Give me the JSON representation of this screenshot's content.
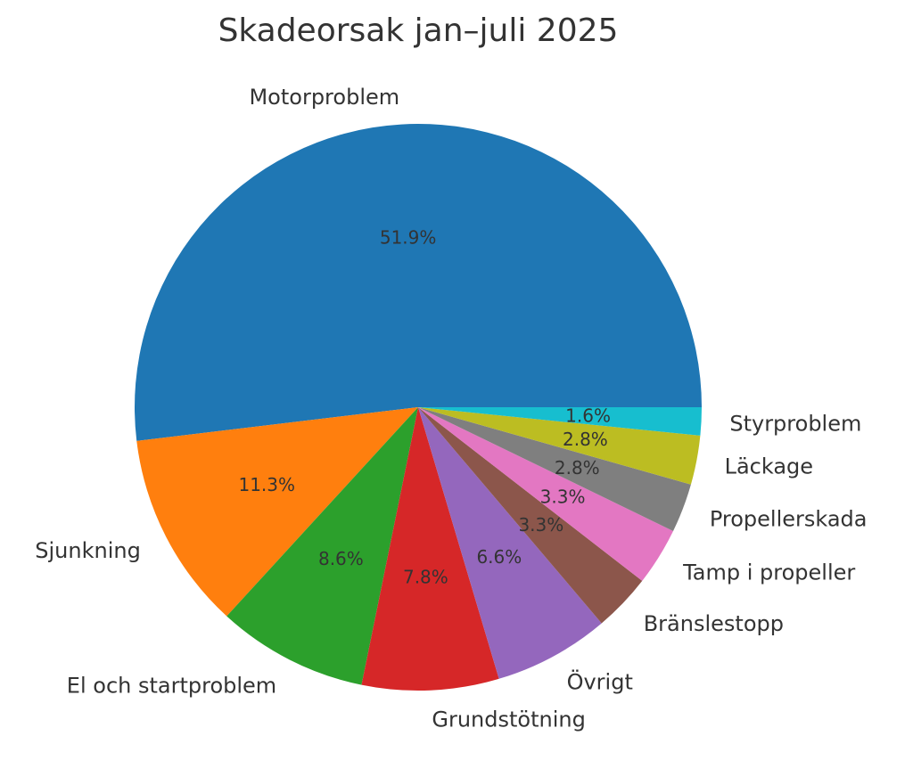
{
  "chart_data": {
    "type": "pie",
    "title": "Skadeorsak jan–juli 2025",
    "start_angle_deg": 0,
    "direction": "counterclockwise",
    "categories": [
      "Motorproblem",
      "Sjunkning",
      "El och startproblem",
      "Grundstötning",
      "Övrigt",
      "Bränslestopp",
      "Tamp i propeller",
      "Propellerskada",
      "Läckage",
      "Styrproblem"
    ],
    "values": [
      51.9,
      11.3,
      8.6,
      7.8,
      6.6,
      3.3,
      3.3,
      2.8,
      2.8,
      1.6
    ],
    "value_labels": [
      "51.9%",
      "11.3%",
      "8.6%",
      "7.8%",
      "6.6%",
      "3.3%",
      "3.3%",
      "2.8%",
      "2.8%",
      "1.6%"
    ],
    "colors": [
      "#1f77b4",
      "#ff7f0e",
      "#2ca02c",
      "#d62728",
      "#9467bd",
      "#8c564b",
      "#e377c2",
      "#7f7f7f",
      "#bcbd22",
      "#17becf"
    ],
    "legend": "none"
  }
}
